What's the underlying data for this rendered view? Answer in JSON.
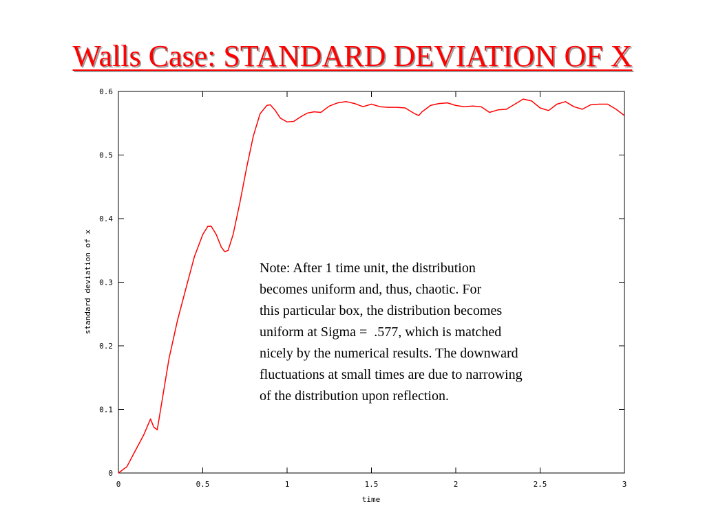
{
  "slide": {
    "title": "Walls Case: STANDARD DEVIATION OF X",
    "note_lines": [
      "Note: After 1 time unit, the distribution",
      "becomes uniform and, thus, chaotic. For",
      "this particular box, the distribution becomes",
      "uniform at Sigma =  .577, which is matched",
      "nicely by the numerical results. The downward",
      "fluctuations at small times are due to narrowing",
      "of the distribution upon reflection."
    ]
  },
  "chart_data": {
    "type": "line",
    "title": "",
    "xlabel": "time",
    "ylabel": "standard deviation of x",
    "xlim": [
      0,
      3
    ],
    "ylim": [
      0,
      0.6
    ],
    "xticks": [
      "0",
      "0.5",
      "1",
      "1.5",
      "2",
      "2.5",
      "3"
    ],
    "yticks": [
      "0",
      "0.1",
      "0.2",
      "0.3",
      "0.4",
      "0.5",
      "0.6"
    ],
    "grid": false,
    "legend": "none",
    "line_color": "#ff0000",
    "series": [
      {
        "x": [
          0,
          0.05,
          0.1,
          0.15,
          0.19,
          0.21,
          0.23,
          0.25,
          0.3,
          0.35,
          0.4,
          0.45,
          0.5,
          0.53,
          0.55,
          0.58,
          0.61,
          0.63,
          0.65,
          0.68,
          0.72,
          0.76,
          0.8,
          0.84,
          0.88,
          0.9,
          0.93,
          0.96,
          1.0,
          1.04,
          1.08,
          1.12,
          1.16,
          1.2,
          1.25,
          1.3,
          1.35,
          1.4,
          1.45,
          1.5,
          1.55,
          1.6,
          1.65,
          1.7,
          1.75,
          1.78,
          1.8,
          1.85,
          1.9,
          1.95,
          2.0,
          2.05,
          2.1,
          2.15,
          2.2,
          2.25,
          2.3,
          2.35,
          2.4,
          2.45,
          2.5,
          2.55,
          2.6,
          2.65,
          2.7,
          2.75,
          2.8,
          2.85,
          2.9,
          2.95,
          3.0
        ],
        "y": [
          0,
          0.01,
          0.035,
          0.06,
          0.085,
          0.072,
          0.068,
          0.1,
          0.18,
          0.24,
          0.29,
          0.34,
          0.375,
          0.388,
          0.388,
          0.375,
          0.355,
          0.348,
          0.35,
          0.375,
          0.425,
          0.48,
          0.53,
          0.565,
          0.578,
          0.579,
          0.57,
          0.558,
          0.552,
          0.553,
          0.56,
          0.566,
          0.568,
          0.567,
          0.577,
          0.582,
          0.584,
          0.581,
          0.576,
          0.58,
          0.576,
          0.575,
          0.575,
          0.574,
          0.566,
          0.562,
          0.568,
          0.578,
          0.581,
          0.582,
          0.578,
          0.576,
          0.577,
          0.576,
          0.567,
          0.571,
          0.572,
          0.58,
          0.588,
          0.585,
          0.574,
          0.57,
          0.58,
          0.584,
          0.576,
          0.572,
          0.579,
          0.58,
          0.58,
          0.572,
          0.562
        ]
      }
    ]
  }
}
